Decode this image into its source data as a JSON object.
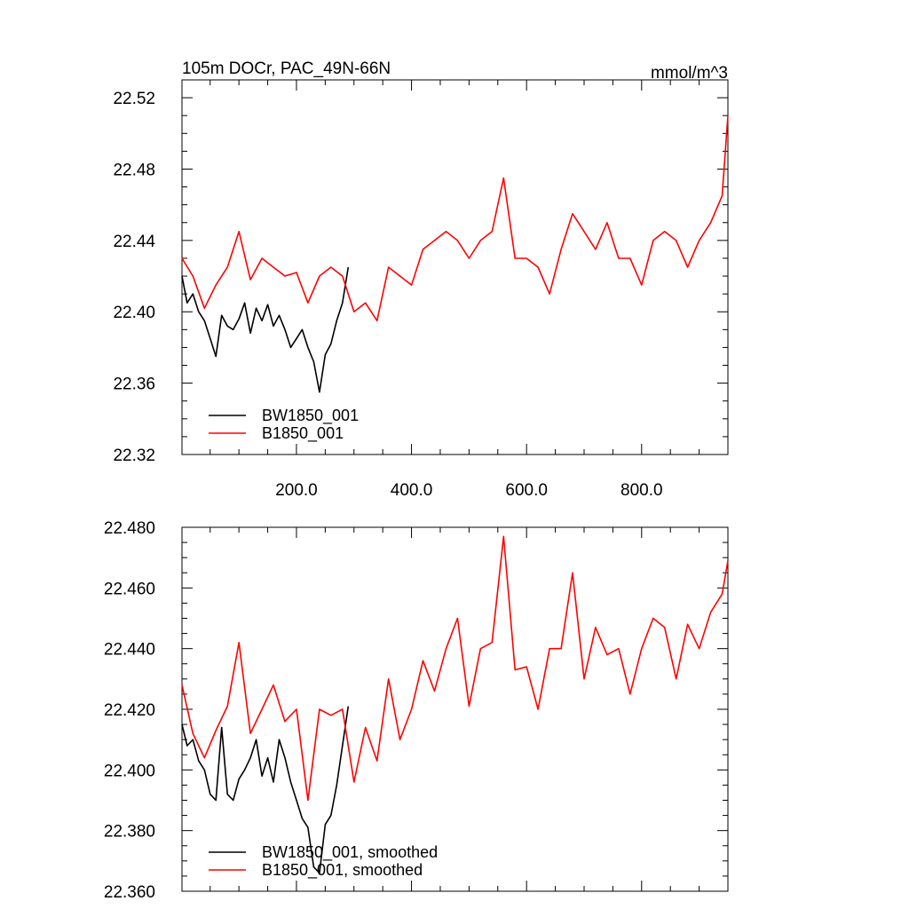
{
  "colors": {
    "black_series": "#000000",
    "red_series": "#ff0000"
  },
  "chart_data": [
    {
      "type": "line",
      "title": "105m DOCr, PAC_49N-66N",
      "units": "mmol/m^3",
      "xlim": [
        1,
        950
      ],
      "ylim": [
        22.32,
        22.53
      ],
      "x_ticks": [
        200,
        400,
        600,
        800
      ],
      "x_tick_labels": [
        "200.0",
        "400.0",
        "600.0",
        "800.0"
      ],
      "y_ticks": [
        22.32,
        22.36,
        22.4,
        22.44,
        22.48,
        22.52
      ],
      "y_tick_labels": [
        "22.32",
        "22.36",
        "22.40",
        "22.44",
        "22.48",
        "22.52"
      ],
      "legend_position": "bottom-left",
      "series": [
        {
          "name": "BW1850_001",
          "color": "#000000",
          "x": [
            1,
            10,
            20,
            30,
            40,
            50,
            60,
            70,
            80,
            90,
            100,
            110,
            120,
            130,
            140,
            150,
            160,
            170,
            180,
            190,
            200,
            210,
            220,
            230,
            240,
            250,
            260,
            270,
            280,
            290
          ],
          "y": [
            22.42,
            22.405,
            22.41,
            22.4,
            22.395,
            22.385,
            22.375,
            22.398,
            22.392,
            22.39,
            22.396,
            22.405,
            22.388,
            22.402,
            22.395,
            22.404,
            22.392,
            22.398,
            22.39,
            22.38,
            22.385,
            22.39,
            22.38,
            22.372,
            22.355,
            22.376,
            22.382,
            22.395,
            22.405,
            22.425
          ]
        },
        {
          "name": "B1850_001",
          "color": "#ff0000",
          "x": [
            1,
            20,
            40,
            60,
            80,
            100,
            120,
            140,
            160,
            180,
            200,
            220,
            240,
            260,
            280,
            300,
            320,
            340,
            360,
            380,
            400,
            420,
            440,
            460,
            480,
            500,
            520,
            540,
            560,
            580,
            600,
            620,
            640,
            660,
            680,
            700,
            720,
            740,
            760,
            780,
            800,
            820,
            840,
            860,
            880,
            900,
            920,
            940,
            950
          ],
          "y": [
            22.43,
            22.42,
            22.402,
            22.415,
            22.425,
            22.445,
            22.418,
            22.43,
            22.425,
            22.42,
            22.422,
            22.405,
            22.42,
            22.425,
            22.42,
            22.4,
            22.405,
            22.395,
            22.425,
            22.42,
            22.415,
            22.435,
            22.44,
            22.445,
            22.44,
            22.43,
            22.44,
            22.445,
            22.475,
            22.43,
            22.43,
            22.425,
            22.41,
            22.435,
            22.455,
            22.445,
            22.435,
            22.45,
            22.43,
            22.43,
            22.415,
            22.44,
            22.445,
            22.44,
            22.425,
            22.44,
            22.45,
            22.465,
            22.51
          ]
        }
      ]
    },
    {
      "type": "line",
      "title": "",
      "xlim": [
        1,
        950
      ],
      "ylim": [
        22.36,
        22.48
      ],
      "y_ticks": [
        22.36,
        22.38,
        22.4,
        22.42,
        22.44,
        22.46,
        22.48
      ],
      "y_tick_labels": [
        "22.360",
        "22.380",
        "22.400",
        "22.420",
        "22.440",
        "22.460",
        "22.480"
      ],
      "legend_position": "bottom-left",
      "series": [
        {
          "name": "BW1850_001, smoothed",
          "color": "#000000",
          "x": [
            1,
            10,
            20,
            30,
            40,
            50,
            60,
            70,
            80,
            90,
            100,
            110,
            120,
            130,
            140,
            150,
            160,
            170,
            180,
            190,
            200,
            210,
            220,
            230,
            240,
            250,
            260,
            270,
            280,
            290
          ],
          "y": [
            22.415,
            22.408,
            22.41,
            22.403,
            22.4,
            22.392,
            22.39,
            22.414,
            22.392,
            22.39,
            22.397,
            22.4,
            22.404,
            22.41,
            22.398,
            22.404,
            22.396,
            22.41,
            22.404,
            22.396,
            22.39,
            22.384,
            22.381,
            22.368,
            22.366,
            22.382,
            22.385,
            22.395,
            22.408,
            22.421
          ]
        },
        {
          "name": "B1850_001, smoothed",
          "color": "#ff0000",
          "x": [
            1,
            20,
            40,
            60,
            80,
            100,
            120,
            140,
            160,
            180,
            200,
            220,
            240,
            260,
            280,
            300,
            320,
            340,
            360,
            380,
            400,
            420,
            440,
            460,
            480,
            500,
            520,
            540,
            560,
            580,
            600,
            620,
            640,
            660,
            680,
            700,
            720,
            740,
            760,
            780,
            800,
            820,
            840,
            860,
            880,
            900,
            920,
            940,
            950
          ],
          "y": [
            22.428,
            22.412,
            22.404,
            22.413,
            22.421,
            22.442,
            22.412,
            22.42,
            22.428,
            22.416,
            22.42,
            22.39,
            22.42,
            22.418,
            22.42,
            22.396,
            22.414,
            22.403,
            22.43,
            22.41,
            22.42,
            22.436,
            22.426,
            22.44,
            22.45,
            22.421,
            22.44,
            22.442,
            22.477,
            22.433,
            22.434,
            22.42,
            22.44,
            22.44,
            22.465,
            22.43,
            22.447,
            22.438,
            22.44,
            22.425,
            22.44,
            22.45,
            22.447,
            22.43,
            22.448,
            22.44,
            22.452,
            22.458,
            22.469
          ]
        }
      ]
    }
  ]
}
